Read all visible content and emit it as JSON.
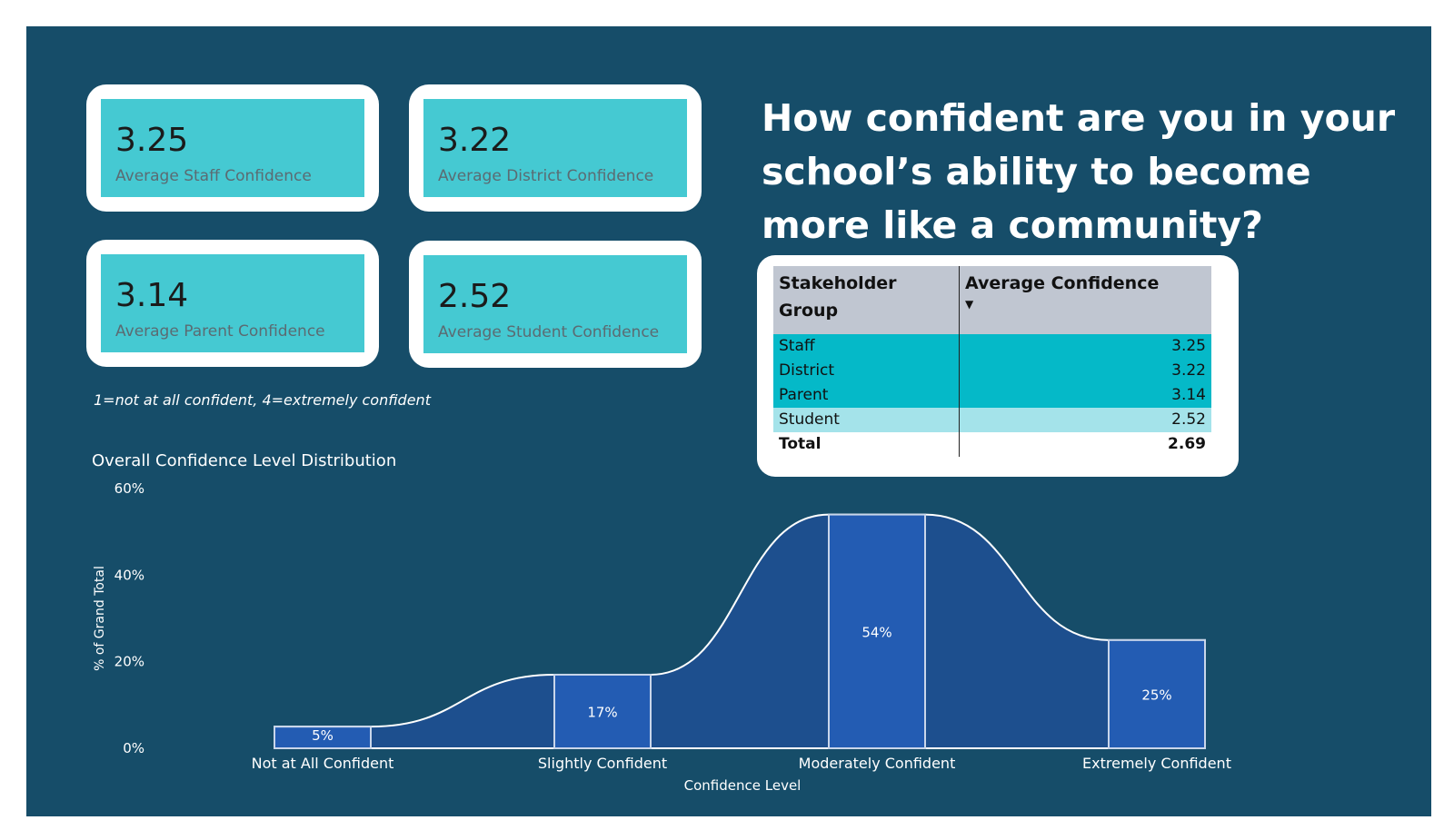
{
  "cards": [
    {
      "value": "3.25",
      "label": "Average Staff Confidence"
    },
    {
      "value": "3.22",
      "label": "Average District Confidence"
    },
    {
      "value": "3.14",
      "label": "Average Parent Confidence"
    },
    {
      "value": "2.52",
      "label": "Average Student Confidence"
    }
  ],
  "scale_note": "1=not at all confident, 4=extremely confident",
  "question": "How confident are you in your school’s ability to become more like a community?",
  "table": {
    "headers": [
      "Stakeholder Group",
      "Average Confidence"
    ],
    "rows": [
      {
        "group": "Staff",
        "value": "3.25"
      },
      {
        "group": "District",
        "value": "3.22"
      },
      {
        "group": "Parent",
        "value": "3.14"
      },
      {
        "group": "Student",
        "value": "2.52"
      }
    ],
    "total": {
      "label": "Total",
      "value": "2.69"
    }
  },
  "colors": {
    "background": "#164d69",
    "card": "#45c9d2",
    "bar": "#235cb3",
    "area": "#1d4f8e",
    "row_dark": "#05b9c8",
    "row_light": "#a4e3ea",
    "header": "#c0c6d1"
  },
  "chart_data": {
    "type": "bar",
    "title": "Overall Confidence Level Distribution",
    "xlabel": "Confidence Level",
    "ylabel": "% of Grand Total",
    "categories": [
      "Not at All Confident",
      "Slightly Confident",
      "Moderately Confident",
      "Extremely Confident"
    ],
    "values": [
      5,
      17,
      54,
      25
    ],
    "data_labels": [
      "5%",
      "17%",
      "54%",
      "25%"
    ],
    "yticks": [
      "0%",
      "20%",
      "40%",
      "60%"
    ],
    "ylim": [
      0,
      60
    ],
    "grid": false,
    "legend": "none"
  }
}
